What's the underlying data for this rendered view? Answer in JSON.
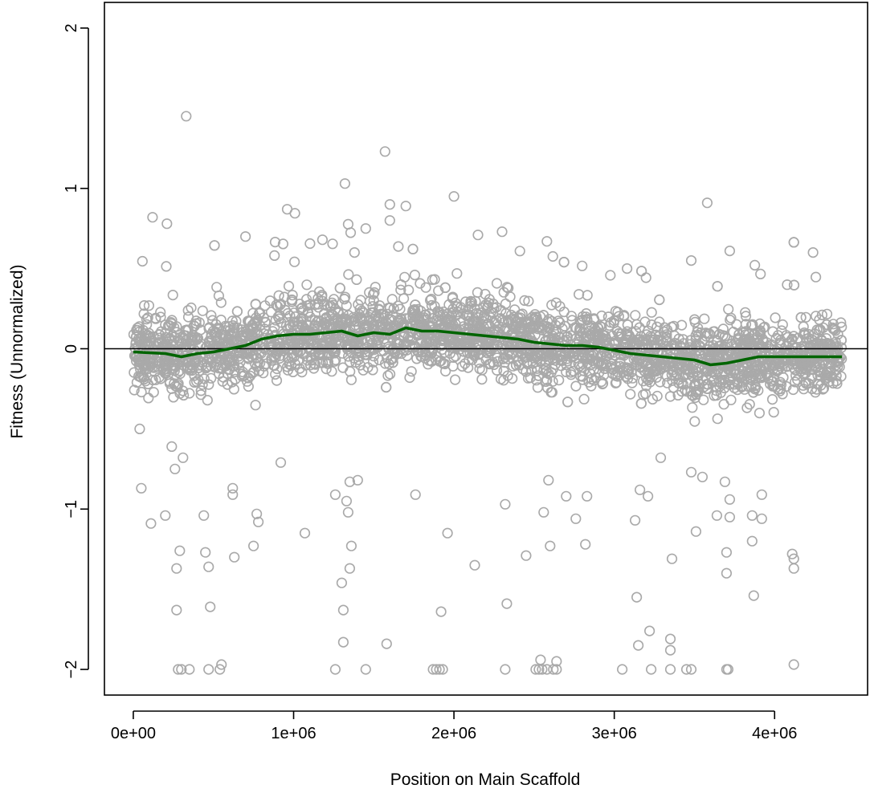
{
  "chart_data": {
    "type": "scatter",
    "title": "",
    "xlabel": "Position on Main Scaffold",
    "ylabel": "Fitness (Unnormalized)",
    "xlim": [
      -180000,
      4580000
    ],
    "ylim": [
      -2.16,
      2.16
    ],
    "x_ticks": [
      0,
      1000000,
      2000000,
      3000000,
      4000000
    ],
    "x_tick_labels": [
      "0e+00",
      "1e+06",
      "2e+06",
      "3e+06",
      "4e+06"
    ],
    "y_ticks": [
      -2,
      -1,
      0,
      1,
      2
    ],
    "y_tick_labels": [
      "−2",
      "−1",
      "0",
      "1",
      "2"
    ],
    "reference_line_y": 0,
    "grid": false,
    "legend": "none",
    "colors": {
      "points": "#a9a9a9",
      "trend": "#006400",
      "reference": "#000000"
    },
    "point_count_approx": 3000,
    "bulk_distribution": {
      "x_range": [
        0,
        4420000
      ],
      "note_values": "dense band of points centered on trend, spread roughly -0.4 to 0.45"
    },
    "points": [
      [
        330000,
        1.45
      ],
      [
        1570000,
        1.23
      ],
      [
        1320000,
        1.03
      ],
      [
        2000000,
        0.95
      ],
      [
        3580000,
        0.91
      ],
      [
        1600000,
        0.9
      ],
      [
        1700000,
        0.89
      ],
      [
        960000,
        0.87
      ],
      [
        120000,
        0.82
      ],
      [
        1600000,
        0.8
      ],
      [
        210000,
        0.78
      ],
      [
        1450000,
        0.75
      ],
      [
        2300000,
        0.73
      ],
      [
        2150000,
        0.71
      ],
      [
        700000,
        0.7
      ],
      [
        1180000,
        0.68
      ],
      [
        2580000,
        0.67
      ],
      [
        3720000,
        0.61
      ],
      [
        1380000,
        0.6
      ],
      [
        4240000,
        0.6
      ],
      [
        3080000,
        0.5
      ],
      [
        3480000,
        0.55
      ],
      [
        40000,
        -0.5
      ],
      [
        50000,
        -0.87
      ],
      [
        110000,
        -1.09
      ],
      [
        200000,
        -1.04
      ],
      [
        240000,
        -0.61
      ],
      [
        260000,
        -0.75
      ],
      [
        270000,
        -1.37
      ],
      [
        270000,
        -1.63
      ],
      [
        290000,
        -1.26
      ],
      [
        310000,
        -0.68
      ],
      [
        440000,
        -1.04
      ],
      [
        450000,
        -1.27
      ],
      [
        470000,
        -1.36
      ],
      [
        480000,
        -1.61
      ],
      [
        620000,
        -0.87
      ],
      [
        620000,
        -0.91
      ],
      [
        630000,
        -1.3
      ],
      [
        750000,
        -1.23
      ],
      [
        770000,
        -1.03
      ],
      [
        780000,
        -1.08
      ],
      [
        920000,
        -0.71
      ],
      [
        1070000,
        -1.15
      ],
      [
        1260000,
        -0.91
      ],
      [
        1300000,
        -1.46
      ],
      [
        1310000,
        -1.63
      ],
      [
        1310000,
        -1.83
      ],
      [
        1330000,
        -0.95
      ],
      [
        1340000,
        -1.02
      ],
      [
        1350000,
        -1.37
      ],
      [
        1360000,
        -1.23
      ],
      [
        1350000,
        -0.83
      ],
      [
        1400000,
        -0.82
      ],
      [
        1580000,
        -1.84
      ],
      [
        1760000,
        -0.91
      ],
      [
        1920000,
        -1.64
      ],
      [
        1960000,
        -1.15
      ],
      [
        2130000,
        -1.35
      ],
      [
        2320000,
        -0.97
      ],
      [
        2330000,
        -1.59
      ],
      [
        2450000,
        -1.29
      ],
      [
        2560000,
        -1.02
      ],
      [
        2590000,
        -0.82
      ],
      [
        2600000,
        -1.23
      ],
      [
        2700000,
        -0.92
      ],
      [
        2760000,
        -1.06
      ],
      [
        2820000,
        -1.22
      ],
      [
        2830000,
        -0.92
      ],
      [
        3130000,
        -1.07
      ],
      [
        3140000,
        -1.55
      ],
      [
        3150000,
        -1.85
      ],
      [
        3160000,
        -0.88
      ],
      [
        3210000,
        -0.92
      ],
      [
        3220000,
        -1.76
      ],
      [
        3290000,
        -0.68
      ],
      [
        3350000,
        -1.81
      ],
      [
        3350000,
        -1.88
      ],
      [
        3360000,
        -1.31
      ],
      [
        3480000,
        -0.77
      ],
      [
        3510000,
        -1.14
      ],
      [
        3550000,
        -0.8
      ],
      [
        3640000,
        -1.04
      ],
      [
        3690000,
        -0.83
      ],
      [
        3700000,
        -1.27
      ],
      [
        3700000,
        -1.4
      ],
      [
        3720000,
        -0.94
      ],
      [
        3720000,
        -1.05
      ],
      [
        3860000,
        -1.04
      ],
      [
        3860000,
        -1.2
      ],
      [
        3870000,
        -1.54
      ],
      [
        3920000,
        -0.91
      ],
      [
        3920000,
        -1.06
      ],
      [
        4110000,
        -1.28
      ],
      [
        4120000,
        -1.31
      ],
      [
        4120000,
        -1.37
      ],
      [
        4120000,
        -1.97
      ],
      [
        280000,
        -2.0
      ],
      [
        300000,
        -2.0
      ],
      [
        350000,
        -2.0
      ],
      [
        470000,
        -2.0
      ],
      [
        540000,
        -2.0
      ],
      [
        550000,
        -1.97
      ],
      [
        1260000,
        -2.0
      ],
      [
        1450000,
        -2.0
      ],
      [
        1870000,
        -2.0
      ],
      [
        1890000,
        -2.0
      ],
      [
        1910000,
        -2.0
      ],
      [
        1930000,
        -2.0
      ],
      [
        2320000,
        -2.0
      ],
      [
        2510000,
        -2.0
      ],
      [
        2530000,
        -2.0
      ],
      [
        2540000,
        -1.94
      ],
      [
        2550000,
        -2.0
      ],
      [
        2580000,
        -2.0
      ],
      [
        2620000,
        -2.0
      ],
      [
        2640000,
        -2.0
      ],
      [
        2640000,
        -1.95
      ],
      [
        3050000,
        -2.0
      ],
      [
        3230000,
        -2.0
      ],
      [
        3350000,
        -2.0
      ],
      [
        3450000,
        -2.0
      ],
      [
        3480000,
        -2.0
      ],
      [
        3700000,
        -2.0
      ],
      [
        3710000,
        -2.0
      ]
    ],
    "trend_line": {
      "name": "",
      "x": [
        0,
        200000,
        300000,
        400000,
        500000,
        600000,
        700000,
        800000,
        900000,
        1000000,
        1100000,
        1200000,
        1300000,
        1400000,
        1500000,
        1600000,
        1700000,
        1800000,
        1900000,
        2000000,
        2100000,
        2200000,
        2300000,
        2400000,
        2500000,
        2600000,
        2700000,
        2800000,
        2900000,
        3000000,
        3100000,
        3200000,
        3300000,
        3400000,
        3500000,
        3600000,
        3700000,
        3800000,
        3900000,
        4000000,
        4100000,
        4200000,
        4300000,
        4420000
      ],
      "y": [
        -0.02,
        -0.03,
        -0.05,
        -0.03,
        -0.02,
        0.0,
        0.02,
        0.06,
        0.08,
        0.09,
        0.09,
        0.1,
        0.11,
        0.08,
        0.1,
        0.09,
        0.13,
        0.11,
        0.11,
        0.1,
        0.09,
        0.08,
        0.07,
        0.06,
        0.04,
        0.03,
        0.02,
        0.02,
        0.01,
        -0.01,
        -0.03,
        -0.04,
        -0.05,
        -0.06,
        -0.07,
        -0.1,
        -0.09,
        -0.07,
        -0.05,
        -0.05,
        -0.05,
        -0.05,
        -0.05,
        -0.05
      ]
    }
  }
}
